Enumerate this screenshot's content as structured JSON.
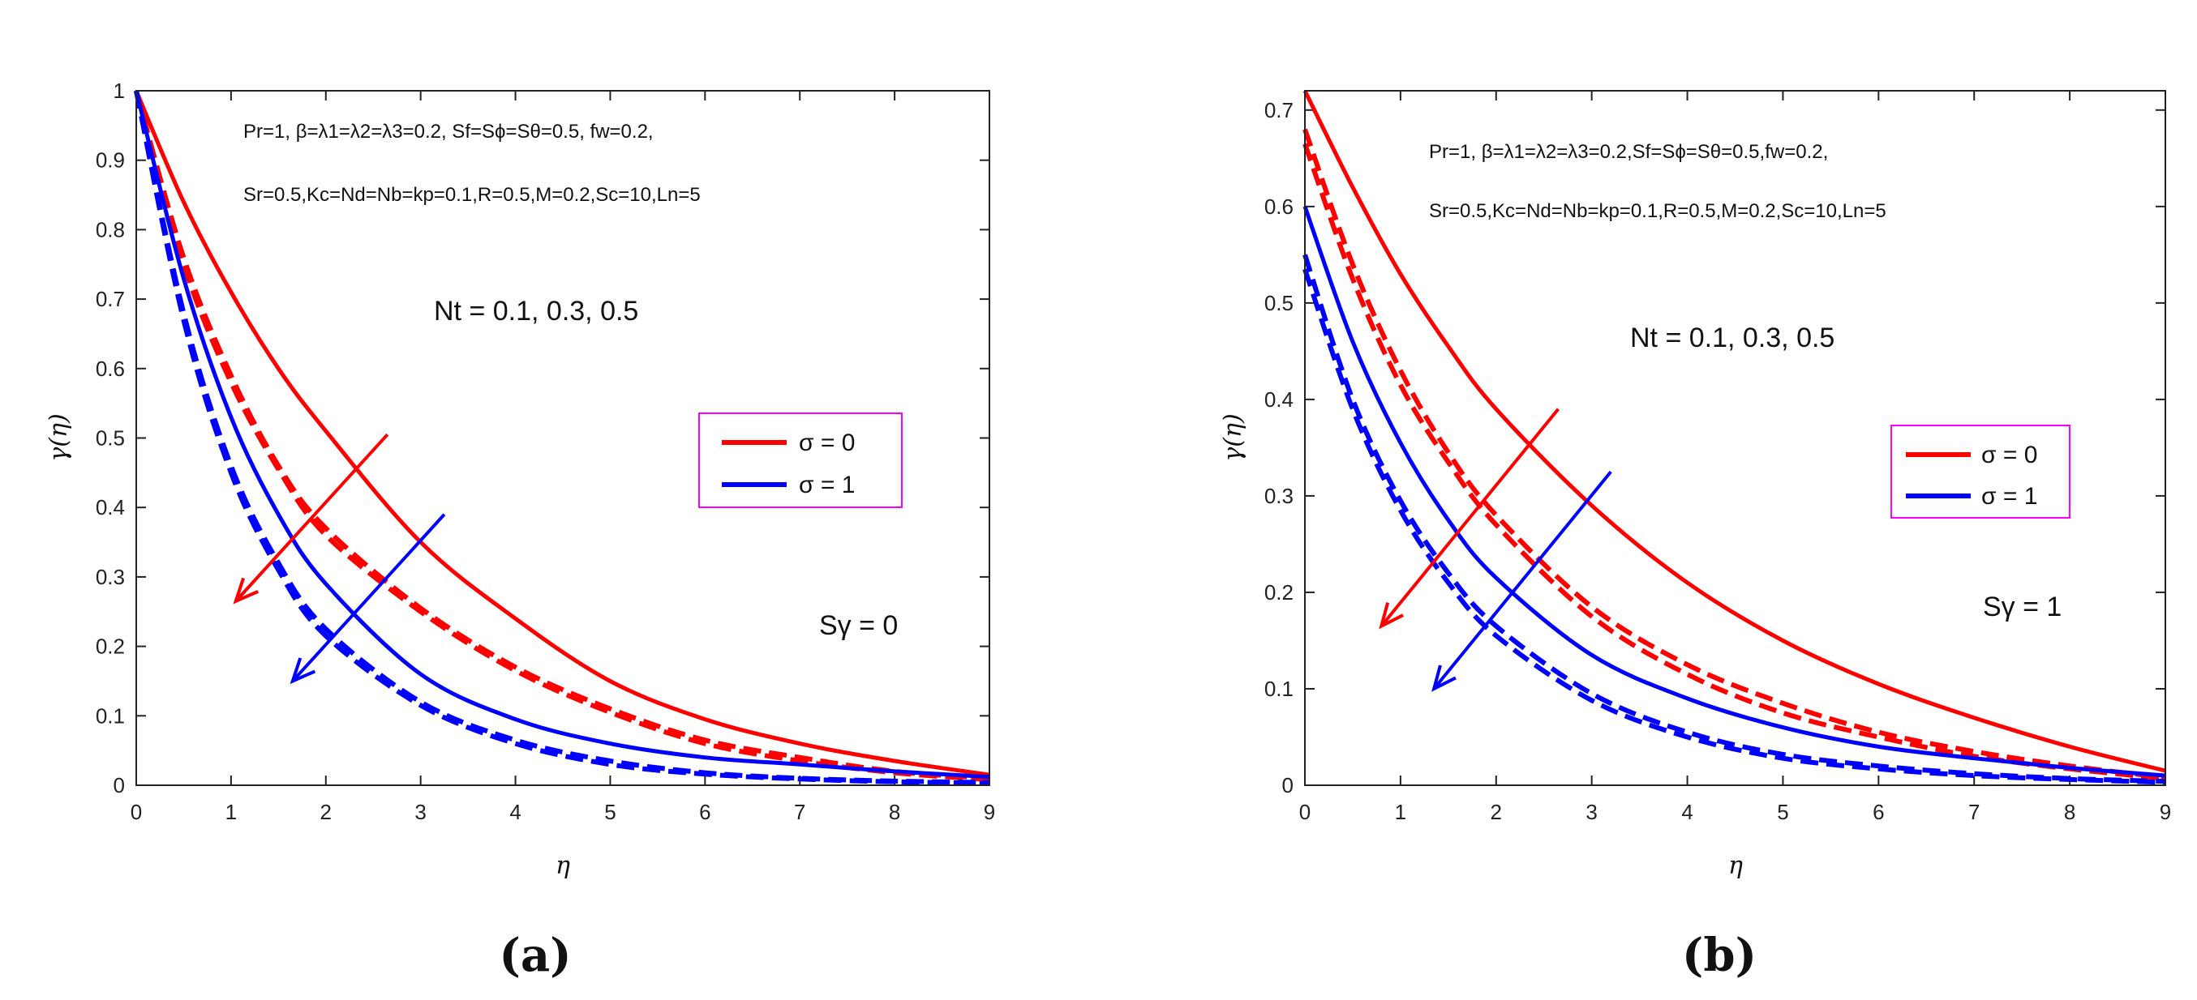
{
  "chart_data": [
    {
      "type": "line",
      "panel_caption": "(a)",
      "xlabel": "η",
      "ylabel": "γ(η)",
      "xlim": [
        0,
        9
      ],
      "ylim": [
        0,
        1
      ],
      "xticks": [
        "0",
        "1",
        "2",
        "3",
        "4",
        "5",
        "6",
        "7",
        "8",
        "9"
      ],
      "yticks": [
        "0",
        "0.1",
        "0.2",
        "0.3",
        "0.4",
        "0.5",
        "0.6",
        "0.7",
        "0.8",
        "0.9",
        "1"
      ],
      "params_line1": "Pr=1, β=λ1=λ2=λ3=0.2, Sf=Sϕ=Sθ=0.5, fw=0.2,",
      "params_line2": "Sr=0.5,Kc=Nd=Nb=kp=0.1,R=0.5,M=0.2,Sc=10,Ln=5",
      "nt_label": "Nt = 0.1, 0.3, 0.5",
      "s_label": "Sγ = 0",
      "legend": [
        "σ = 0",
        "σ = 1"
      ],
      "colors": {
        "sigma0": "#ff0000",
        "sigma1": "#0000ff",
        "legend_border": "#ff00ff"
      },
      "series": [
        {
          "name": "σ = 0, Nt = 0.1",
          "style": "solid",
          "x": [
            0,
            0.5,
            1,
            1.5,
            2,
            3,
            4,
            5,
            6,
            7,
            8,
            9
          ],
          "y": [
            1.0,
            0.84,
            0.71,
            0.6,
            0.51,
            0.35,
            0.24,
            0.15,
            0.095,
            0.06,
            0.035,
            0.015
          ]
        },
        {
          "name": "σ = 0, Nt = 0.3",
          "style": "dashed",
          "x": [
            0,
            0.5,
            1,
            1.5,
            2,
            3,
            4,
            5,
            6,
            7,
            8,
            9
          ],
          "y": [
            1.0,
            0.76,
            0.59,
            0.46,
            0.37,
            0.255,
            0.17,
            0.11,
            0.065,
            0.04,
            0.02,
            0.01
          ]
        },
        {
          "name": "σ = 0, Nt = 0.5",
          "style": "dashed",
          "x": [
            0,
            0.5,
            1,
            1.5,
            2,
            3,
            4,
            5,
            6,
            7,
            8,
            9
          ],
          "y": [
            1.0,
            0.75,
            0.58,
            0.455,
            0.36,
            0.25,
            0.165,
            0.105,
            0.06,
            0.035,
            0.018,
            0.008
          ]
        },
        {
          "name": "σ = 1, Nt = 0.1",
          "style": "solid",
          "x": [
            0,
            0.5,
            1,
            1.5,
            2,
            3,
            4,
            5,
            6,
            7,
            8,
            9
          ],
          "y": [
            1.0,
            0.73,
            0.53,
            0.39,
            0.29,
            0.16,
            0.095,
            0.06,
            0.04,
            0.03,
            0.02,
            0.012
          ]
        },
        {
          "name": "σ = 1, Nt = 0.3",
          "style": "dashed",
          "x": [
            0,
            0.5,
            1,
            1.5,
            2,
            3,
            4,
            5,
            6,
            7,
            8,
            9
          ],
          "y": [
            1.0,
            0.68,
            0.46,
            0.32,
            0.225,
            0.12,
            0.065,
            0.035,
            0.018,
            0.01,
            0.006,
            0.004
          ]
        },
        {
          "name": "σ = 1, Nt = 0.5",
          "style": "dashed",
          "x": [
            0,
            0.5,
            1,
            1.5,
            2,
            3,
            4,
            5,
            6,
            7,
            8,
            9
          ],
          "y": [
            1.0,
            0.67,
            0.45,
            0.31,
            0.215,
            0.115,
            0.06,
            0.03,
            0.016,
            0.009,
            0.005,
            0.003
          ]
        }
      ],
      "arrows": [
        {
          "color": "sigma0",
          "from": [
            2.65,
            0.505
          ],
          "to": [
            1.05,
            0.265
          ]
        },
        {
          "color": "sigma1",
          "from": [
            3.25,
            0.39
          ],
          "to": [
            1.65,
            0.15
          ]
        }
      ]
    },
    {
      "type": "line",
      "panel_caption": "(b)",
      "xlabel": "η",
      "ylabel": "γ(η)",
      "xlim": [
        0,
        9
      ],
      "ylim": [
        0,
        0.72
      ],
      "xticks": [
        "0",
        "1",
        "2",
        "3",
        "4",
        "5",
        "6",
        "7",
        "8",
        "9"
      ],
      "yticks": [
        "0",
        "0.1",
        "0.2",
        "0.3",
        "0.4",
        "0.5",
        "0.6",
        "0.7"
      ],
      "params_line1": "Pr=1, β=λ1=λ2=λ3=0.2,Sf=Sϕ=Sθ=0.5,fw=0.2,",
      "params_line2": "Sr=0.5,Kc=Nd=Nb=kp=0.1,R=0.5,M=0.2,Sc=10,Ln=5",
      "nt_label": "Nt = 0.1, 0.3, 0.5",
      "s_label": "Sγ = 1",
      "legend": [
        "σ = 0",
        "σ = 1"
      ],
      "colors": {
        "sigma0": "#ff0000",
        "sigma1": "#0000ff",
        "legend_border": "#ff00ff"
      },
      "series": [
        {
          "name": "σ = 0, Nt = 0.1",
          "style": "solid",
          "x": [
            0,
            0.5,
            1,
            1.5,
            2,
            3,
            4,
            5,
            6,
            7,
            8,
            9
          ],
          "y": [
            0.72,
            0.62,
            0.53,
            0.455,
            0.39,
            0.29,
            0.21,
            0.15,
            0.105,
            0.07,
            0.04,
            0.015
          ]
        },
        {
          "name": "σ = 0, Nt = 0.3",
          "style": "dashed",
          "x": [
            0,
            0.5,
            1,
            1.5,
            2,
            3,
            4,
            5,
            6,
            7,
            8,
            9
          ],
          "y": [
            0.68,
            0.54,
            0.43,
            0.345,
            0.28,
            0.185,
            0.125,
            0.085,
            0.055,
            0.035,
            0.02,
            0.008
          ]
        },
        {
          "name": "σ = 0, Nt = 0.5",
          "style": "dashed",
          "x": [
            0,
            0.5,
            1,
            1.5,
            2,
            3,
            4,
            5,
            6,
            7,
            8,
            9
          ],
          "y": [
            0.665,
            0.525,
            0.415,
            0.335,
            0.27,
            0.175,
            0.115,
            0.075,
            0.05,
            0.03,
            0.017,
            0.007
          ]
        },
        {
          "name": "σ = 1, Nt = 0.1",
          "style": "solid",
          "x": [
            0,
            0.5,
            1,
            1.5,
            2,
            3,
            4,
            5,
            6,
            7,
            8,
            9
          ],
          "y": [
            0.6,
            0.46,
            0.355,
            0.275,
            0.215,
            0.135,
            0.09,
            0.06,
            0.04,
            0.028,
            0.018,
            0.01
          ]
        },
        {
          "name": "σ = 1, Nt = 0.3",
          "style": "dashed",
          "x": [
            0,
            0.5,
            1,
            1.5,
            2,
            3,
            4,
            5,
            6,
            7,
            8,
            9
          ],
          "y": [
            0.55,
            0.4,
            0.295,
            0.22,
            0.165,
            0.095,
            0.055,
            0.032,
            0.02,
            0.012,
            0.007,
            0.004
          ]
        },
        {
          "name": "σ = 1, Nt = 0.5",
          "style": "dashed",
          "x": [
            0,
            0.5,
            1,
            1.5,
            2,
            3,
            4,
            5,
            6,
            7,
            8,
            9
          ],
          "y": [
            0.535,
            0.39,
            0.285,
            0.21,
            0.155,
            0.088,
            0.05,
            0.028,
            0.017,
            0.01,
            0.006,
            0.003
          ]
        }
      ],
      "arrows": [
        {
          "color": "sigma0",
          "from": [
            2.65,
            0.39
          ],
          "to": [
            0.8,
            0.165
          ]
        },
        {
          "color": "sigma1",
          "from": [
            3.2,
            0.325
          ],
          "to": [
            1.35,
            0.1
          ]
        }
      ]
    }
  ]
}
